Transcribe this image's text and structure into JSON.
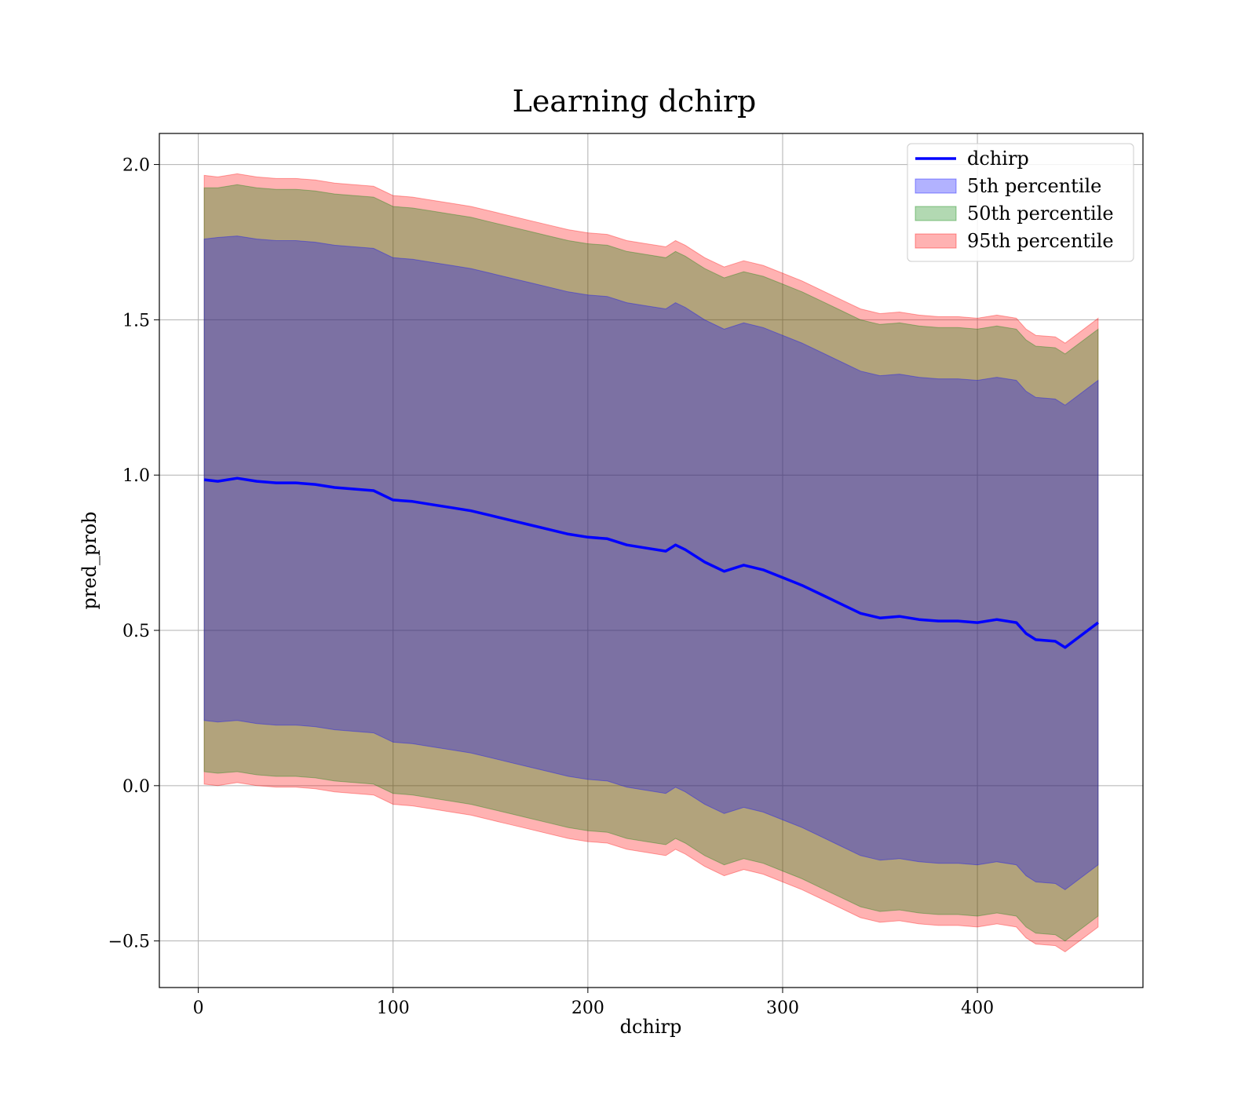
{
  "chart_data": {
    "type": "area",
    "title": "Learning dchirp",
    "xlabel": "dchirp",
    "ylabel": "pred_prob",
    "xlim": [
      -20,
      485
    ],
    "ylim": [
      -0.65,
      2.1
    ],
    "xticks": [
      0,
      100,
      200,
      300,
      400
    ],
    "yticks": [
      -0.5,
      0.0,
      0.5,
      1.0,
      1.5,
      2.0
    ],
    "xtick_labels": [
      "0",
      "100",
      "200",
      "300",
      "400"
    ],
    "ytick_labels": [
      "−0.5",
      "0.0",
      "0.5",
      "1.0",
      "1.5",
      "2.0"
    ],
    "grid": true,
    "legend_position": "top-right",
    "x": [
      3,
      10,
      20,
      30,
      40,
      50,
      60,
      70,
      80,
      90,
      100,
      110,
      120,
      130,
      140,
      150,
      160,
      170,
      180,
      190,
      200,
      210,
      220,
      230,
      240,
      245,
      250,
      260,
      270,
      280,
      290,
      300,
      310,
      320,
      330,
      340,
      350,
      360,
      370,
      380,
      390,
      400,
      410,
      420,
      425,
      430,
      440,
      445,
      462
    ],
    "series": [
      {
        "name": "dchirp",
        "kind": "line",
        "color": "#0000ff",
        "values": [
          0.985,
          0.98,
          0.99,
          0.98,
          0.975,
          0.975,
          0.97,
          0.96,
          0.955,
          0.95,
          0.92,
          0.915,
          0.905,
          0.895,
          0.885,
          0.87,
          0.855,
          0.84,
          0.825,
          0.81,
          0.8,
          0.795,
          0.775,
          0.765,
          0.755,
          0.775,
          0.76,
          0.72,
          0.69,
          0.71,
          0.695,
          0.67,
          0.645,
          0.615,
          0.585,
          0.555,
          0.54,
          0.545,
          0.535,
          0.53,
          0.53,
          0.525,
          0.535,
          0.525,
          0.49,
          0.47,
          0.465,
          0.445,
          0.525
        ]
      },
      {
        "name": "5th percentile",
        "kind": "band",
        "color": "#0000ff",
        "opacity": 0.3,
        "upper": [
          1.76,
          1.765,
          1.77,
          1.76,
          1.755,
          1.755,
          1.75,
          1.74,
          1.735,
          1.73,
          1.7,
          1.695,
          1.685,
          1.675,
          1.665,
          1.65,
          1.635,
          1.62,
          1.605,
          1.59,
          1.58,
          1.575,
          1.555,
          1.545,
          1.535,
          1.555,
          1.54,
          1.5,
          1.47,
          1.49,
          1.475,
          1.45,
          1.425,
          1.395,
          1.365,
          1.335,
          1.32,
          1.325,
          1.315,
          1.31,
          1.31,
          1.305,
          1.315,
          1.305,
          1.27,
          1.25,
          1.245,
          1.225,
          1.305
        ],
        "lower": [
          0.21,
          0.205,
          0.21,
          0.2,
          0.195,
          0.195,
          0.19,
          0.18,
          0.175,
          0.17,
          0.14,
          0.135,
          0.125,
          0.115,
          0.105,
          0.09,
          0.075,
          0.06,
          0.045,
          0.03,
          0.02,
          0.015,
          -0.005,
          -0.015,
          -0.025,
          -0.005,
          -0.02,
          -0.06,
          -0.09,
          -0.07,
          -0.085,
          -0.11,
          -0.135,
          -0.165,
          -0.195,
          -0.225,
          -0.24,
          -0.235,
          -0.245,
          -0.25,
          -0.25,
          -0.255,
          -0.245,
          -0.255,
          -0.29,
          -0.31,
          -0.315,
          -0.335,
          -0.255
        ]
      },
      {
        "name": "50th percentile",
        "kind": "band",
        "color": "#008000",
        "opacity": 0.3,
        "upper": [
          1.925,
          1.925,
          1.935,
          1.925,
          1.92,
          1.92,
          1.915,
          1.905,
          1.9,
          1.895,
          1.865,
          1.86,
          1.85,
          1.84,
          1.83,
          1.815,
          1.8,
          1.785,
          1.77,
          1.755,
          1.745,
          1.74,
          1.72,
          1.71,
          1.7,
          1.72,
          1.705,
          1.665,
          1.635,
          1.655,
          1.64,
          1.615,
          1.59,
          1.56,
          1.53,
          1.5,
          1.485,
          1.49,
          1.48,
          1.475,
          1.475,
          1.47,
          1.48,
          1.47,
          1.435,
          1.415,
          1.41,
          1.39,
          1.47
        ],
        "lower": [
          0.045,
          0.04,
          0.045,
          0.035,
          0.03,
          0.03,
          0.025,
          0.015,
          0.01,
          0.005,
          -0.025,
          -0.03,
          -0.04,
          -0.05,
          -0.06,
          -0.075,
          -0.09,
          -0.105,
          -0.12,
          -0.135,
          -0.145,
          -0.15,
          -0.17,
          -0.18,
          -0.19,
          -0.17,
          -0.185,
          -0.225,
          -0.255,
          -0.235,
          -0.25,
          -0.275,
          -0.3,
          -0.33,
          -0.36,
          -0.39,
          -0.405,
          -0.4,
          -0.41,
          -0.415,
          -0.415,
          -0.42,
          -0.41,
          -0.42,
          -0.455,
          -0.475,
          -0.48,
          -0.5,
          -0.42
        ]
      },
      {
        "name": "95th percentile",
        "kind": "band",
        "color": "#ff0000",
        "opacity": 0.3,
        "upper": [
          1.965,
          1.96,
          1.97,
          1.96,
          1.955,
          1.955,
          1.95,
          1.94,
          1.935,
          1.93,
          1.9,
          1.895,
          1.885,
          1.875,
          1.865,
          1.85,
          1.835,
          1.82,
          1.805,
          1.79,
          1.78,
          1.775,
          1.755,
          1.745,
          1.735,
          1.755,
          1.74,
          1.7,
          1.67,
          1.69,
          1.675,
          1.65,
          1.625,
          1.595,
          1.565,
          1.535,
          1.52,
          1.525,
          1.515,
          1.51,
          1.51,
          1.505,
          1.515,
          1.505,
          1.47,
          1.45,
          1.445,
          1.425,
          1.505
        ],
        "lower": [
          0.005,
          0.0,
          0.01,
          0.0,
          -0.005,
          -0.005,
          -0.01,
          -0.02,
          -0.025,
          -0.03,
          -0.06,
          -0.065,
          -0.075,
          -0.085,
          -0.095,
          -0.11,
          -0.125,
          -0.14,
          -0.155,
          -0.17,
          -0.18,
          -0.185,
          -0.205,
          -0.215,
          -0.225,
          -0.205,
          -0.22,
          -0.26,
          -0.29,
          -0.27,
          -0.285,
          -0.31,
          -0.335,
          -0.365,
          -0.395,
          -0.425,
          -0.44,
          -0.435,
          -0.445,
          -0.45,
          -0.45,
          -0.455,
          -0.445,
          -0.455,
          -0.49,
          -0.51,
          -0.515,
          -0.535,
          -0.455
        ]
      }
    ]
  }
}
